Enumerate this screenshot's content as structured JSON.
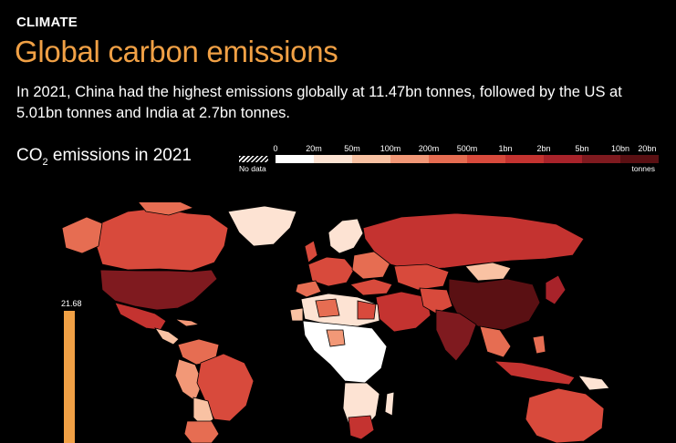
{
  "header": {
    "kicker": "CLIMATE",
    "title": "Global carbon emissions",
    "subtitle": "In 2021, China had the highest emissions globally at 11.47bn tonnes, followed by the US at 5.01bn tonnes and India at 2.7bn tonnes."
  },
  "map_title": {
    "prefix": "CO",
    "subscript": "2",
    "suffix": " emissions in 2021"
  },
  "legend": {
    "ticks": [
      "0",
      "20m",
      "50m",
      "100m",
      "200m",
      "500m",
      "1bn",
      "2bn",
      "5bn",
      "10bn",
      "20bn"
    ],
    "colors": [
      "#ffffff",
      "#fde3d3",
      "#f9c2a3",
      "#f29877",
      "#e66d52",
      "#d84a3c",
      "#c43330",
      "#a8232a",
      "#7f1a1f",
      "#5a1013"
    ],
    "no_data_label": "No data",
    "units": "tonnes"
  },
  "side_bar": {
    "value": "21.68",
    "color": "#f0a045"
  },
  "colors": {
    "accent": "#f0a045",
    "background": "#000000",
    "text": "#ffffff"
  }
}
